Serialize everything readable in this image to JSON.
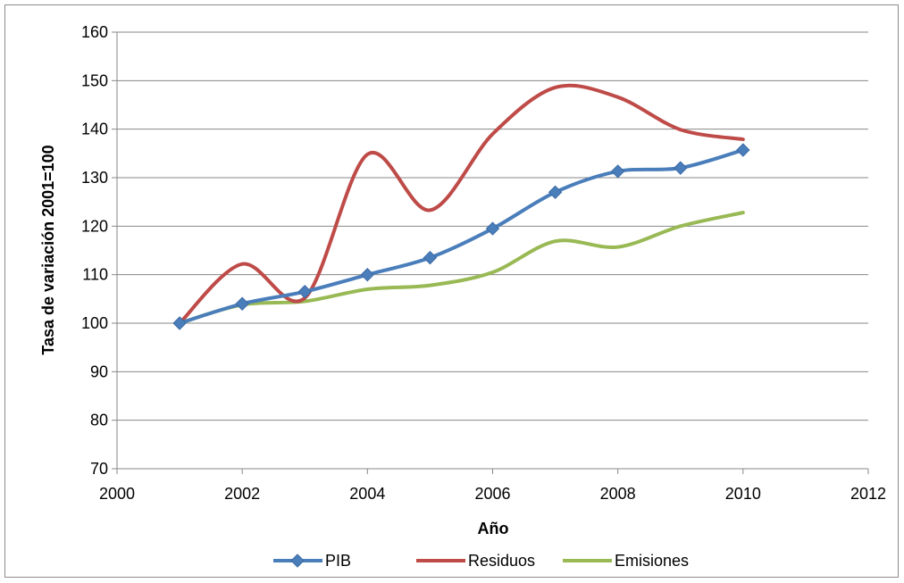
{
  "chart_data": {
    "type": "line",
    "title": "",
    "xlabel": "Año",
    "ylabel": "Tasa de variación 2001=100",
    "xlim": [
      2000,
      2012
    ],
    "ylim": [
      70,
      160
    ],
    "x_ticks": [
      2000,
      2002,
      2004,
      2006,
      2008,
      2010,
      2012
    ],
    "y_ticks": [
      70,
      80,
      90,
      100,
      110,
      120,
      130,
      140,
      150,
      160
    ],
    "grid": "horizontal",
    "legend_position": "bottom",
    "x": [
      2001,
      2002,
      2003,
      2004,
      2005,
      2006,
      2007,
      2008,
      2009,
      2010
    ],
    "series": [
      {
        "name": "PIB",
        "color": "#4a7ebb",
        "marker": "diamond",
        "values": [
          100,
          104,
          106.5,
          110,
          113.5,
          119.5,
          127,
          131.3,
          132,
          135.7
        ]
      },
      {
        "name": "Residuos",
        "color": "#be4b48",
        "marker": "none",
        "values": [
          100,
          112.2,
          105.2,
          134.8,
          123.3,
          139,
          148.6,
          146.6,
          139.9,
          137.9
        ]
      },
      {
        "name": "Emisiones",
        "color": "#98b954",
        "marker": "none",
        "values": [
          100,
          103.8,
          104.5,
          107,
          107.8,
          110.5,
          116.9,
          115.7,
          120,
          122.8
        ]
      }
    ]
  }
}
